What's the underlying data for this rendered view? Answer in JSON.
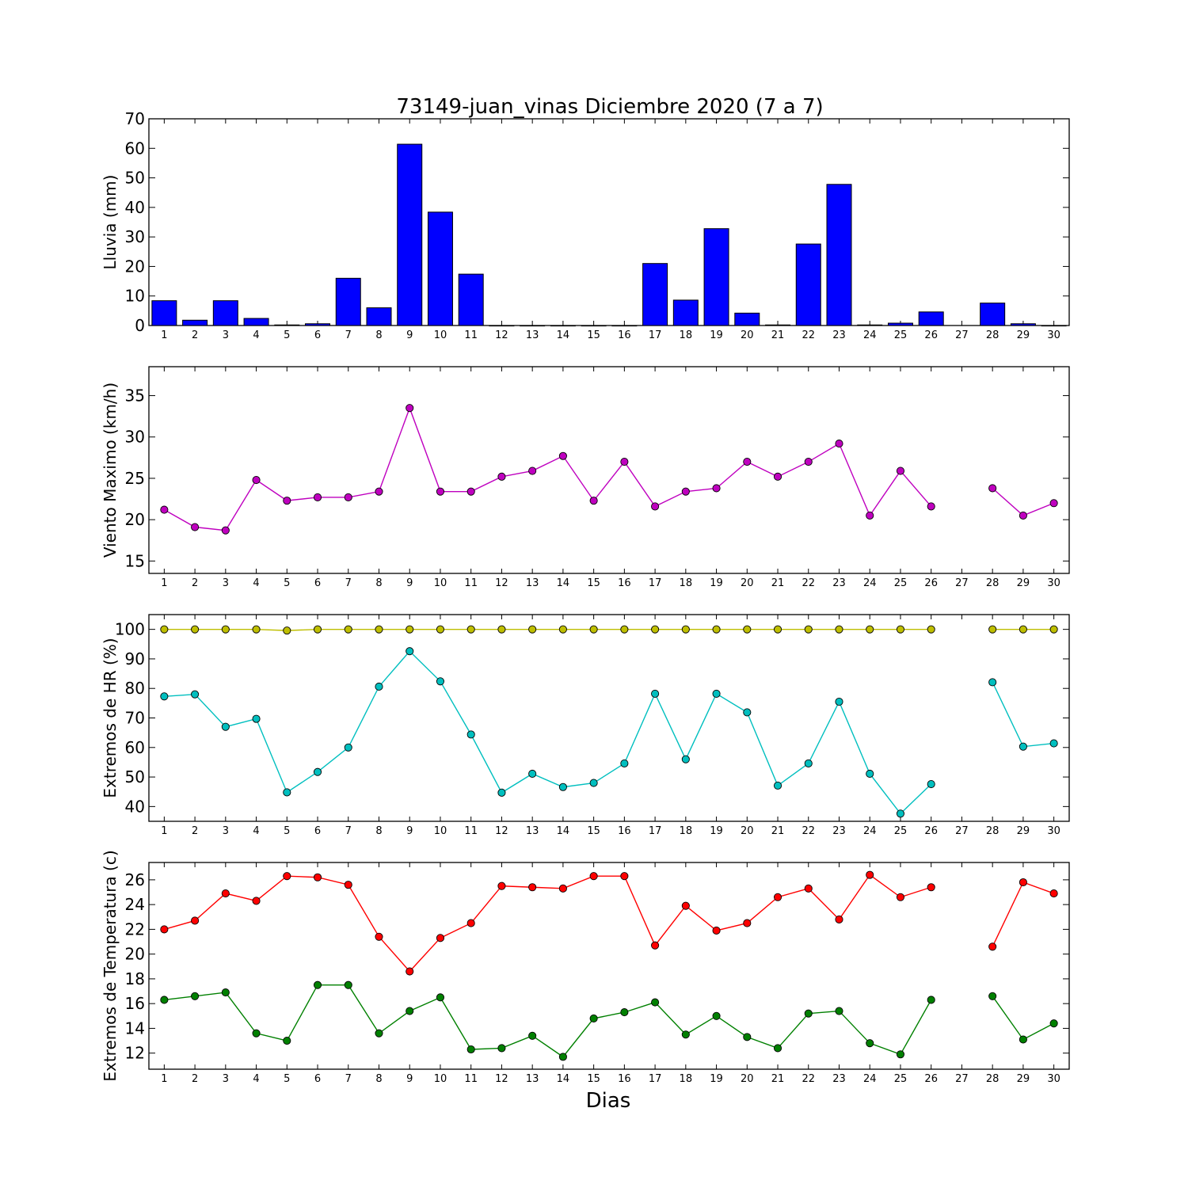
{
  "title": "73149-juan_vinas Diciembre 2020  (7 a 7)",
  "xlabel": "Dias",
  "days": [
    "1",
    "2",
    "3",
    "4",
    "5",
    "6",
    "7",
    "8",
    "9",
    "10",
    "11",
    "12",
    "13",
    "14",
    "15",
    "16",
    "17",
    "18",
    "19",
    "20",
    "21",
    "22",
    "23",
    "24",
    "25",
    "26",
    "27",
    "28",
    "29",
    "30"
  ],
  "chart_data": [
    {
      "type": "bar",
      "ylabel": "Lluvia (mm)",
      "ylim": [
        0,
        70
      ],
      "yticks": [
        0,
        10,
        20,
        30,
        40,
        50,
        60,
        70
      ],
      "color": "#0000ff",
      "categories": [
        "1",
        "2",
        "3",
        "4",
        "5",
        "6",
        "7",
        "8",
        "9",
        "10",
        "11",
        "12",
        "13",
        "14",
        "15",
        "16",
        "17",
        "18",
        "19",
        "20",
        "21",
        "22",
        "23",
        "24",
        "25",
        "26",
        "27",
        "28",
        "29",
        "30"
      ],
      "values": [
        8.4,
        1.8,
        8.4,
        2.4,
        0.2,
        0.6,
        16.0,
        6.0,
        61.4,
        38.4,
        17.4,
        0.0,
        0.0,
        0.0,
        0.0,
        0.0,
        21.0,
        8.6,
        32.8,
        4.2,
        0.2,
        27.6,
        47.8,
        0.2,
        0.8,
        4.6,
        null,
        7.6,
        0.6,
        0.0
      ]
    },
    {
      "type": "line",
      "ylabel": "Viento Maximo (km/h)",
      "ylim": [
        13.5,
        38.5
      ],
      "yticks": [
        15,
        20,
        25,
        30,
        35
      ],
      "categories": [
        "1",
        "2",
        "3",
        "4",
        "5",
        "6",
        "7",
        "8",
        "9",
        "10",
        "11",
        "12",
        "13",
        "14",
        "15",
        "16",
        "17",
        "18",
        "19",
        "20",
        "21",
        "22",
        "23",
        "24",
        "25",
        "26",
        "27",
        "28",
        "29",
        "30"
      ],
      "series": [
        {
          "color": "#bf00bf",
          "values": [
            21.2,
            19.1,
            18.7,
            24.8,
            22.3,
            22.7,
            22.7,
            23.4,
            33.5,
            23.4,
            23.4,
            25.2,
            25.9,
            27.7,
            22.3,
            27.0,
            21.6,
            23.4,
            23.8,
            27.0,
            25.2,
            27.0,
            29.2,
            20.5,
            25.9,
            21.6,
            null,
            23.8,
            20.5,
            22.0
          ]
        }
      ]
    },
    {
      "type": "line",
      "ylabel": "Extremos de HR (%)",
      "ylim": [
        35,
        105
      ],
      "yticks": [
        40,
        50,
        60,
        70,
        80,
        90,
        100
      ],
      "categories": [
        "1",
        "2",
        "3",
        "4",
        "5",
        "6",
        "7",
        "8",
        "9",
        "10",
        "11",
        "12",
        "13",
        "14",
        "15",
        "16",
        "17",
        "18",
        "19",
        "20",
        "21",
        "22",
        "23",
        "24",
        "25",
        "26",
        "27",
        "28",
        "29",
        "30"
      ],
      "series": [
        {
          "color": "#bfbf00",
          "values": [
            100,
            100,
            100,
            100,
            99.6,
            100,
            100,
            100,
            100,
            100,
            100,
            100,
            100,
            100,
            100,
            100,
            100,
            100,
            100,
            100,
            100,
            100,
            100,
            100,
            100,
            100,
            null,
            100,
            100,
            100
          ]
        },
        {
          "color": "#00bfbf",
          "values": [
            77.3,
            78.0,
            67.0,
            69.7,
            44.8,
            51.7,
            60.0,
            80.6,
            92.6,
            82.4,
            64.4,
            44.7,
            51.1,
            46.6,
            48.0,
            54.6,
            78.2,
            56.0,
            78.2,
            71.9,
            47.1,
            54.6,
            75.5,
            51.1,
            37.6,
            47.6,
            null,
            82.1,
            60.3,
            61.4
          ]
        }
      ]
    },
    {
      "type": "line",
      "ylabel": "Extremos de Temperatura (c)",
      "ylim": [
        10.7,
        27.4
      ],
      "yticks": [
        12,
        14,
        16,
        18,
        20,
        22,
        24,
        26
      ],
      "categories": [
        "1",
        "2",
        "3",
        "4",
        "5",
        "6",
        "7",
        "8",
        "9",
        "10",
        "11",
        "12",
        "13",
        "14",
        "15",
        "16",
        "17",
        "18",
        "19",
        "20",
        "21",
        "22",
        "23",
        "24",
        "25",
        "26",
        "27",
        "28",
        "29",
        "30"
      ],
      "series": [
        {
          "color": "#ff0000",
          "values": [
            22.0,
            22.7,
            24.9,
            24.3,
            26.3,
            26.2,
            25.6,
            21.4,
            18.6,
            21.3,
            22.5,
            25.5,
            25.4,
            25.3,
            26.3,
            26.3,
            20.7,
            23.9,
            21.9,
            22.5,
            24.6,
            25.3,
            22.8,
            26.4,
            24.6,
            25.4,
            null,
            20.6,
            25.8,
            24.9
          ]
        },
        {
          "color": "#008000",
          "values": [
            16.3,
            16.6,
            16.9,
            13.6,
            13.0,
            17.5,
            17.5,
            13.6,
            15.4,
            16.5,
            12.3,
            12.4,
            13.4,
            11.7,
            14.8,
            15.3,
            16.1,
            13.5,
            15.0,
            13.3,
            12.4,
            15.2,
            15.4,
            12.8,
            11.9,
            16.3,
            null,
            16.6,
            13.1,
            14.4
          ]
        }
      ]
    }
  ]
}
